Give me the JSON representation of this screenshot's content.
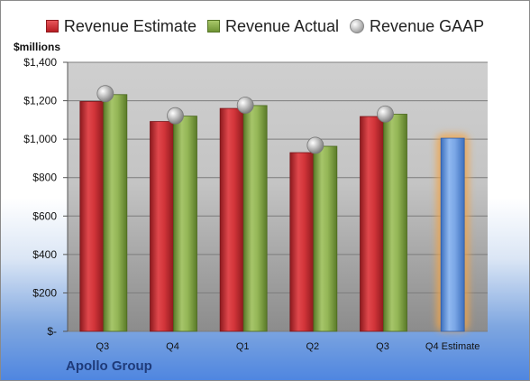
{
  "chart_data": {
    "type": "bar",
    "categories": [
      "Q3",
      "Q4",
      "Q1",
      "Q2",
      "Q3",
      "Q4 Estimate"
    ],
    "series": [
      {
        "name": "Revenue Estimate",
        "values": [
          1196,
          1092,
          1160,
          930,
          1118,
          null
        ],
        "color": "#c8262c"
      },
      {
        "name": "Revenue Actual",
        "values": [
          1232,
          1120,
          1175,
          963,
          1130,
          null
        ],
        "color": "#86a84a"
      },
      {
        "name": "Revenue GAAP",
        "values": [
          1237,
          1122,
          1177,
          968,
          1131,
          null
        ],
        "color": "#b0b0b0"
      }
    ],
    "estimate": {
      "category": "Q4 Estimate",
      "value": 1005,
      "color": "#6b9be0",
      "glow": "#f2a54a"
    },
    "ylabel": "$millions",
    "ylim": [
      0,
      1400
    ],
    "yticks": [
      0,
      200,
      400,
      600,
      800,
      1000,
      1200,
      1400
    ],
    "ytick_labels": [
      "$-",
      "$200",
      "$400",
      "$600",
      "$800",
      "$1,000",
      "$1,200",
      "$1,400"
    ],
    "grid": true,
    "legend_position": "top",
    "footer": "Apollo Group"
  }
}
